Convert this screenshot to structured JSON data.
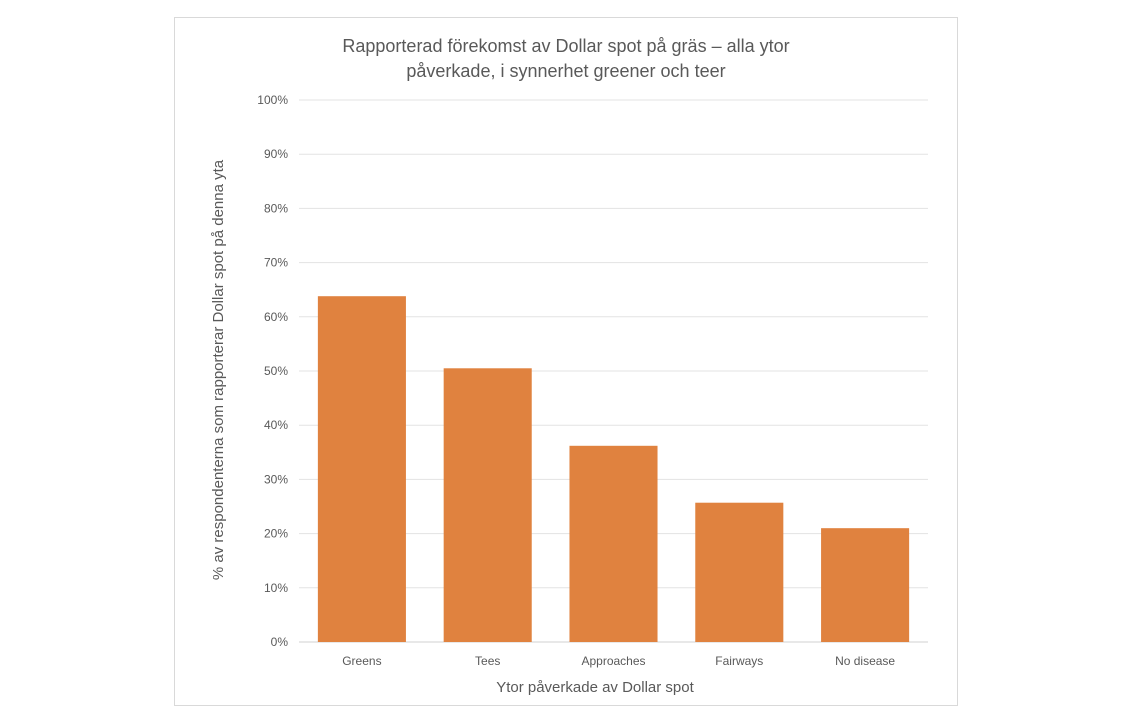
{
  "chart_data": {
    "type": "bar",
    "title_lines": [
      "Rapporterad förekomst av Dollar spot på gräs – alla ytor",
      "påverkade, i synnerhet greener och teer"
    ],
    "categories": [
      "Greens",
      "Tees",
      "Approaches",
      "Fairways",
      "No disease"
    ],
    "values": [
      63.8,
      50.5,
      36.2,
      25.7,
      21.0
    ],
    "y_ticks": [
      "0%",
      "10%",
      "20%",
      "30%",
      "40%",
      "50%",
      "60%",
      "70%",
      "80%",
      "90%",
      "100%"
    ],
    "ylim": [
      0,
      100
    ],
    "xlabel": "Ytor påverkade av Dollar spot",
    "ylabel": "% av respondenterna som rapporterar Dollar spot på denna yta",
    "grid": true,
    "legend": "none",
    "bar_color": "#E0823F",
    "grid_color": "#e3e3e3"
  }
}
